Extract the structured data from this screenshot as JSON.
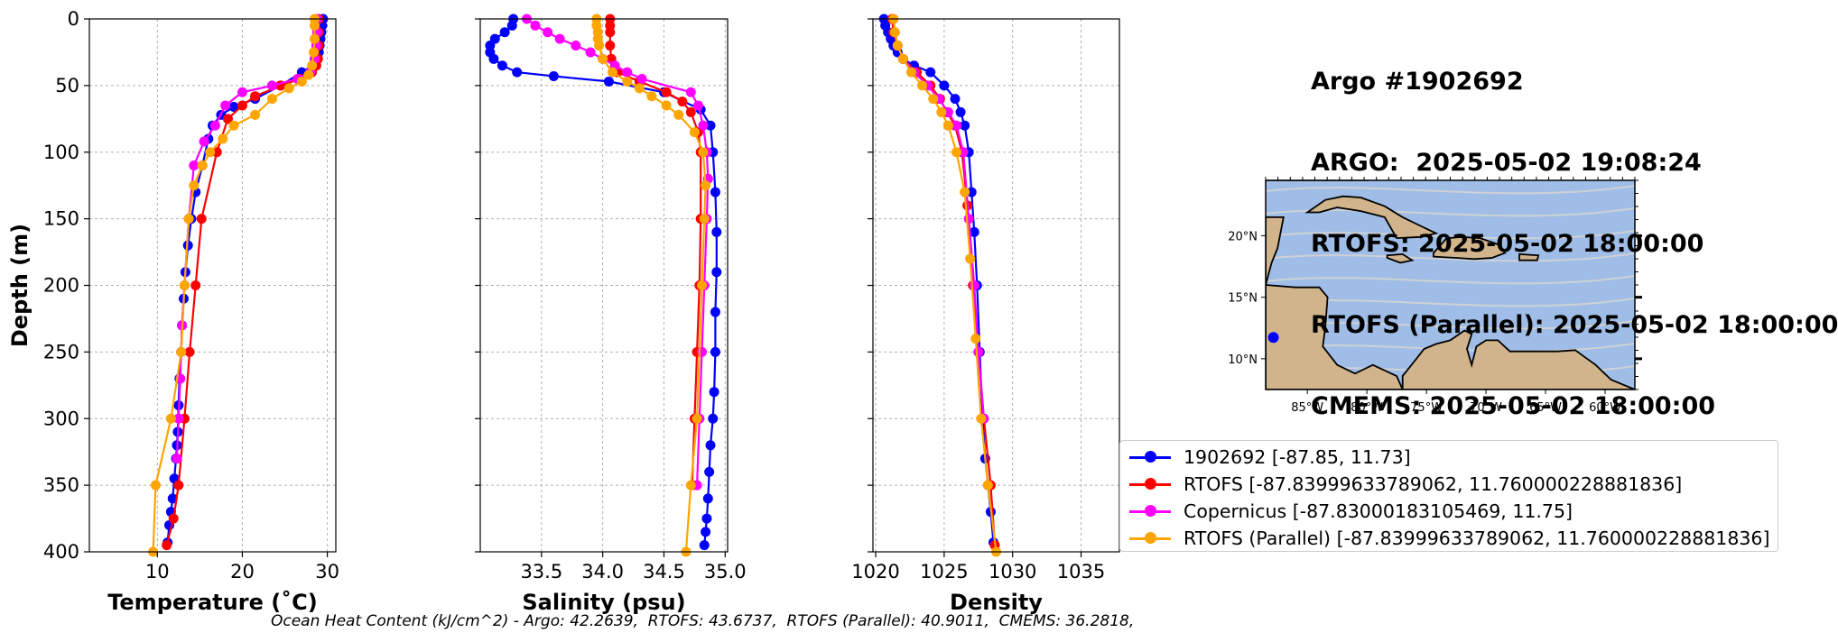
{
  "title_lines": [
    "Argo #1902692",
    "ARGO:  2025-05-02 19:08:24",
    "RTOFS: 2025-05-02 18:00:00",
    "RTOFS (Parallel): 2025-05-02 18:00:00",
    "CMEMS: 2025-05-02 18:00:00"
  ],
  "footer": "Ocean Heat Content (kJ/cm^2) - Argo: 42.2639,  RTOFS: 43.6737,  RTOFS (Parallel): 40.9011,  CMEMS: 36.2818,",
  "legend": [
    {
      "label": "1902692 [-87.85, 11.73]",
      "color": "#0000ff"
    },
    {
      "label": "RTOFS [-87.83999633789062, 11.760000228881836]",
      "color": "#ff0000"
    },
    {
      "label": "Copernicus [-87.83000183105469, 11.75]",
      "color": "#ff00ff"
    },
    {
      "label": "RTOFS (Parallel) [-87.83999633789062, 11.760000228881836]",
      "color": "#ffa500"
    }
  ],
  "colors": {
    "argo": "#0000ff",
    "rtofs": "#ff0000",
    "copernicus": "#ff00ff",
    "parallel": "#ffa500",
    "ocean": "#9fbde6",
    "land": "#d2b48c",
    "stream": "#d3d3d3",
    "grid": "#b0b0b0"
  },
  "map": {
    "lat_ticks": [
      "20°N",
      "15°N",
      "10°N"
    ],
    "lon_ticks": [
      "85°W",
      "80°W",
      "75°W",
      "70°W",
      "65°W",
      "60°W"
    ],
    "extent": {
      "lon": [
        -88.5,
        -57.5
      ],
      "lat": [
        7.5,
        24.5
      ]
    },
    "float_position": {
      "lon": -87.85,
      "lat": 11.73
    },
    "marker_icon": "blue-dot-marker"
  },
  "chart_data": [
    {
      "type": "line",
      "xlabel": "Temperature (˚C)",
      "ylabel": "Depth (m)",
      "xlim": [
        2,
        31
      ],
      "ylim": [
        400,
        0
      ],
      "xticks": [
        10,
        20,
        30
      ],
      "yticks": [
        0,
        50,
        100,
        150,
        200,
        250,
        300,
        350,
        400
      ],
      "grid": true,
      "series": [
        {
          "name": "1902692 [-87.85, 11.73]",
          "color": "#0000ff",
          "x": [
            29.5,
            29.4,
            29.3,
            29.2,
            29.1,
            29.0,
            28.8,
            28.3,
            27.0,
            24.5,
            21.5,
            19.0,
            17.5,
            16.5,
            16.0,
            15.3,
            14.5,
            14.0,
            13.6,
            13.3,
            13.1,
            12.9,
            12.8,
            12.6,
            12.5,
            12.4,
            12.3,
            12.2,
            12.0,
            11.8,
            11.6,
            11.4,
            11.2
          ],
          "y": [
            0,
            5,
            10,
            15,
            20,
            25,
            30,
            35,
            40,
            50,
            60,
            66,
            72,
            80,
            90,
            110,
            130,
            150,
            170,
            190,
            210,
            230,
            250,
            270,
            290,
            310,
            320,
            330,
            345,
            360,
            370,
            380,
            393
          ]
        },
        {
          "name": "RTOFS [-87.83999633789062, 11.760000228881836]",
          "color": "#ff0000",
          "x": [
            29.0,
            29.0,
            29.0,
            28.9,
            28.7,
            28.2,
            26.8,
            24.5,
            21.5,
            20.0,
            18.3,
            17.0,
            15.2,
            14.5,
            13.8,
            13.2,
            12.5,
            11.9,
            11.1
          ],
          "y": [
            0,
            10,
            20,
            30,
            35,
            40,
            45,
            50,
            58,
            65,
            75,
            100,
            150,
            200,
            250,
            300,
            350,
            375,
            395
          ]
        },
        {
          "name": "Copernicus [-87.83000183105469, 11.75]",
          "color": "#ff00ff",
          "x": [
            28.8,
            28.8,
            28.7,
            28.5,
            28.0,
            26.5,
            23.5,
            20.0,
            18.0,
            16.8,
            15.5,
            14.3,
            13.7,
            13.2,
            12.9,
            12.7,
            12.5,
            12.3
          ],
          "y": [
            0,
            10,
            20,
            30,
            40,
            45,
            50,
            55,
            65,
            80,
            92,
            110,
            150,
            200,
            230,
            270,
            300,
            330
          ]
        },
        {
          "name": "RTOFS (Parallel) [-87.83999633789062, 11.760000228881836]",
          "color": "#ffa500",
          "x": [
            28.5,
            28.5,
            28.5,
            28.4,
            28.2,
            27.8,
            27.0,
            25.5,
            23.5,
            21.5,
            19.0,
            17.7,
            16.2,
            15.3,
            14.3,
            13.7,
            13.2,
            12.8,
            11.6,
            9.8,
            9.5
          ],
          "y": [
            0,
            5,
            15,
            25,
            35,
            42,
            47,
            52,
            60,
            72,
            80,
            90,
            100,
            110,
            125,
            150,
            200,
            250,
            300,
            350,
            400
          ]
        }
      ]
    },
    {
      "type": "line",
      "xlabel": "Salinity (psu)",
      "ylabel": "",
      "xlim": [
        33.0,
        35.02
      ],
      "ylim": [
        400,
        0
      ],
      "xticks": [
        33.5,
        34.0,
        34.5,
        35.0
      ],
      "xtick_labels": [
        "33.5",
        "34.0",
        "34.5",
        "35.0"
      ],
      "yticks": [
        0,
        50,
        100,
        150,
        200,
        250,
        300,
        350,
        400
      ],
      "grid": true,
      "series": [
        {
          "name": "1902692 [-87.85, 11.73]",
          "color": "#0000ff",
          "x": [
            33.27,
            33.26,
            33.2,
            33.12,
            33.08,
            33.08,
            33.11,
            33.18,
            33.3,
            33.6,
            34.05,
            34.5,
            34.8,
            34.88,
            34.9,
            34.92,
            34.93,
            34.93,
            34.92,
            34.92,
            34.91,
            34.9,
            34.88,
            34.87,
            34.86,
            34.85,
            34.84,
            34.83
          ],
          "y": [
            0,
            5,
            10,
            15,
            20,
            25,
            30,
            35,
            40,
            43,
            47,
            55,
            68,
            80,
            100,
            130,
            160,
            190,
            220,
            250,
            280,
            300,
            320,
            340,
            360,
            375,
            385,
            395
          ]
        },
        {
          "name": "RTOFS [-87.83999633789062, 11.760000228881836]",
          "color": "#ff0000",
          "x": [
            34.06,
            34.06,
            34.06,
            34.06,
            34.07,
            34.12,
            34.3,
            34.52,
            34.65,
            34.72,
            34.78,
            34.8,
            34.8,
            34.79,
            34.77,
            34.75,
            34.73
          ],
          "y": [
            0,
            5,
            10,
            20,
            30,
            40,
            47,
            55,
            62,
            70,
            85,
            100,
            150,
            200,
            250,
            300,
            350
          ]
        },
        {
          "name": "Copernicus [-87.83000183105469, 11.75]",
          "color": "#ff00ff",
          "x": [
            33.38,
            33.45,
            33.55,
            33.65,
            33.78,
            33.9,
            34.0,
            34.1,
            34.2,
            34.32,
            34.72,
            34.78,
            34.82,
            34.85,
            34.86,
            34.85,
            34.83,
            34.81,
            34.79,
            34.77
          ],
          "y": [
            0,
            5,
            10,
            15,
            20,
            25,
            30,
            35,
            40,
            45,
            55,
            65,
            80,
            100,
            120,
            150,
            200,
            250,
            300,
            350
          ]
        },
        {
          "name": "RTOFS (Parallel) [-87.83999633789062, 11.760000228881836]",
          "color": "#ffa500",
          "x": [
            33.95,
            33.95,
            33.96,
            33.96,
            33.97,
            34.0,
            34.08,
            34.2,
            34.3,
            34.4,
            34.52,
            34.62,
            34.75,
            34.82,
            34.84,
            34.83,
            34.81,
            34.77,
            34.72,
            34.68
          ],
          "y": [
            0,
            5,
            10,
            15,
            20,
            30,
            40,
            47,
            52,
            58,
            65,
            72,
            85,
            100,
            125,
            150,
            200,
            300,
            350,
            400
          ]
        }
      ]
    },
    {
      "type": "line",
      "xlabel": "Density",
      "ylabel": "",
      "xlim": [
        1019.8,
        1037.8
      ],
      "ylim": [
        400,
        0
      ],
      "xticks": [
        1020,
        1025,
        1030,
        1035
      ],
      "yticks": [
        0,
        50,
        100,
        150,
        200,
        250,
        300,
        350,
        400
      ],
      "grid": true,
      "series": [
        {
          "name": "1902692 [-87.85, 11.73]",
          "color": "#0000ff",
          "x": [
            1020.6,
            1020.7,
            1020.9,
            1021.1,
            1021.3,
            1021.6,
            1022.0,
            1022.8,
            1024.0,
            1025.0,
            1025.8,
            1026.2,
            1026.5,
            1026.8,
            1027.0,
            1027.2,
            1027.4,
            1027.6,
            1027.8,
            1028.0,
            1028.2,
            1028.4,
            1028.6
          ],
          "y": [
            0,
            5,
            10,
            15,
            20,
            25,
            30,
            35,
            40,
            50,
            60,
            70,
            80,
            100,
            130,
            160,
            200,
            250,
            300,
            330,
            350,
            370,
            393
          ]
        },
        {
          "name": "RTOFS [-87.83999633789062, 11.760000228881836]",
          "color": "#ff0000",
          "x": [
            1021.2,
            1021.3,
            1021.6,
            1022.0,
            1023.0,
            1024.0,
            1024.7,
            1025.2,
            1025.8,
            1026.3,
            1026.7,
            1027.1,
            1027.5,
            1027.9,
            1028.4,
            1028.7
          ],
          "y": [
            0,
            10,
            20,
            30,
            40,
            50,
            60,
            70,
            80,
            100,
            140,
            200,
            250,
            300,
            350,
            395
          ]
        },
        {
          "name": "Copernicus [-87.83000183105469, 11.75]",
          "color": "#ff00ff",
          "x": [
            1021.3,
            1021.4,
            1021.6,
            1022.0,
            1022.8,
            1023.8,
            1024.6,
            1025.3,
            1025.9,
            1026.4,
            1026.8,
            1027.2,
            1027.5,
            1027.9
          ],
          "y": [
            0,
            10,
            20,
            30,
            40,
            50,
            60,
            70,
            80,
            100,
            150,
            200,
            250,
            300
          ]
        },
        {
          "name": "RTOFS (Parallel) [-87.83999633789062, 11.760000228881836]",
          "color": "#ffa500",
          "x": [
            1021.3,
            1021.4,
            1021.6,
            1022.0,
            1022.6,
            1023.4,
            1024.2,
            1024.8,
            1025.3,
            1025.9,
            1026.5,
            1026.9,
            1027.3,
            1027.7,
            1028.2,
            1028.8
          ],
          "y": [
            0,
            10,
            20,
            30,
            40,
            50,
            60,
            70,
            80,
            100,
            130,
            180,
            240,
            300,
            350,
            400
          ]
        }
      ]
    }
  ]
}
